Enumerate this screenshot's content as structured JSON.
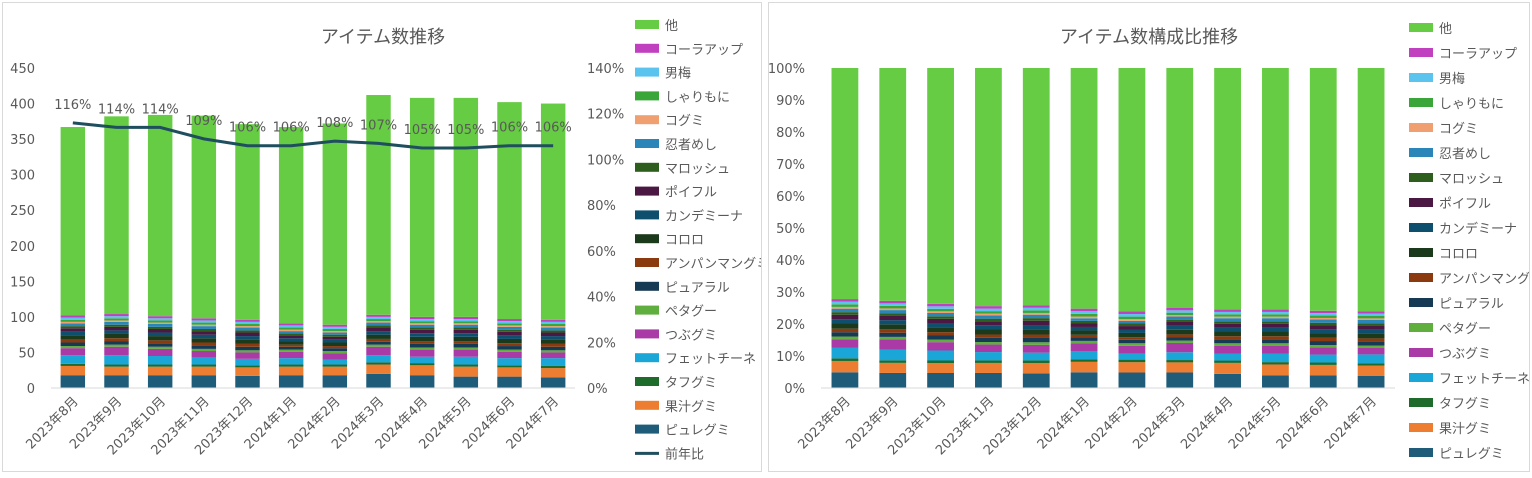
{
  "chart_data": [
    {
      "type": "bar",
      "stacked": true,
      "title": "アイテム数推移",
      "categories": [
        "2023年8月",
        "2023年9月",
        "2023年10月",
        "2023年11月",
        "2023年12月",
        "2024年1月",
        "2024年2月",
        "2024年3月",
        "2024年4月",
        "2024年5月",
        "2024年6月",
        "2024年7月"
      ],
      "ylim": [
        0,
        450
      ],
      "yticks": [
        "0",
        "50",
        "100",
        "150",
        "200",
        "250",
        "300",
        "350",
        "400",
        "450"
      ],
      "y2lim": [
        0,
        140
      ],
      "y2ticks": [
        "0%",
        "20%",
        "40%",
        "60%",
        "80%",
        "100%",
        "120%",
        "140%"
      ],
      "grid": false,
      "legend": "right",
      "series": [
        {
          "name": "ピュレグミ",
          "color": "#1f5c7a",
          "values": [
            18,
            18,
            18,
            18,
            17,
            18,
            18,
            20,
            18,
            16,
            16,
            15
          ]
        },
        {
          "name": "果汁グミ",
          "color": "#ed7d31",
          "values": [
            13,
            12,
            12,
            12,
            12,
            12,
            12,
            13,
            14,
            14,
            13,
            13
          ]
        },
        {
          "name": "タフグミ",
          "color": "#1e6b2c",
          "values": [
            3,
            3,
            3,
            3,
            3,
            3,
            3,
            3,
            3,
            3,
            3,
            3
          ]
        },
        {
          "name": "フェットチーネ",
          "color": "#1aa6d6",
          "values": [
            12,
            13,
            12,
            10,
            9,
            9,
            7,
            10,
            9,
            11,
            10,
            11
          ]
        },
        {
          "name": "つぶグミ",
          "color": "#a93aa6",
          "values": [
            10,
            12,
            10,
            9,
            9,
            9,
            9,
            12,
            10,
            10,
            9,
            8
          ]
        },
        {
          "name": "ペタグー",
          "color": "#5fae3e",
          "values": [
            3,
            3,
            3,
            3,
            3,
            3,
            3,
            3,
            3,
            3,
            3,
            3
          ]
        },
        {
          "name": "ピュアラル",
          "color": "#173a54",
          "values": [
            5,
            5,
            5,
            5,
            5,
            4,
            4,
            4,
            5,
            5,
            5,
            5
          ]
        },
        {
          "name": "アンパンマングミ",
          "color": "#8b3a0f",
          "values": [
            4,
            4,
            4,
            4,
            4,
            3,
            3,
            4,
            4,
            4,
            4,
            4
          ]
        },
        {
          "name": "コロロ",
          "color": "#1b3a1b",
          "values": [
            6,
            6,
            6,
            6,
            6,
            5,
            5,
            6,
            6,
            6,
            6,
            6
          ]
        },
        {
          "name": "カンデミーナ",
          "color": "#0f4f6e",
          "values": [
            5,
            5,
            5,
            5,
            5,
            4,
            4,
            5,
            5,
            5,
            5,
            5
          ]
        },
        {
          "name": "ポイフル",
          "color": "#4a1842",
          "values": [
            5,
            5,
            5,
            5,
            5,
            4,
            4,
            5,
            5,
            5,
            5,
            5
          ]
        },
        {
          "name": "マロッシュ",
          "color": "#2e5e1e",
          "values": [
            3,
            3,
            3,
            3,
            3,
            3,
            3,
            3,
            3,
            3,
            3,
            3
          ]
        },
        {
          "name": "忍者めし",
          "color": "#2a86b8",
          "values": [
            4,
            4,
            4,
            4,
            4,
            3,
            3,
            4,
            4,
            4,
            4,
            4
          ]
        },
        {
          "name": "コグミ",
          "color": "#f0a070",
          "values": [
            2,
            2,
            2,
            2,
            2,
            2,
            2,
            2,
            2,
            2,
            2,
            2
          ]
        },
        {
          "name": "しゃりもに",
          "color": "#3aa63a",
          "values": [
            3,
            3,
            3,
            3,
            3,
            3,
            3,
            3,
            3,
            3,
            3,
            3
          ]
        },
        {
          "name": "男梅",
          "color": "#5bc4ee",
          "values": [
            3,
            3,
            3,
            3,
            3,
            3,
            3,
            3,
            3,
            3,
            3,
            3
          ]
        },
        {
          "name": "コーラアップ",
          "color": "#c040c0",
          "values": [
            3,
            3,
            3,
            3,
            3,
            3,
            3,
            3,
            3,
            3,
            3,
            3
          ]
        },
        {
          "name": "他",
          "color": "#66cc44",
          "values": [
            265,
            278,
            283,
            285,
            275,
            276,
            283,
            309,
            308,
            308,
            305,
            304
          ]
        }
      ],
      "line": {
        "name": "前年比",
        "color": "#1f4e5e",
        "values": [
          116,
          114,
          114,
          109,
          106,
          106,
          108,
          107,
          105,
          105,
          106,
          106
        ],
        "labels": [
          "116%",
          "114%",
          "114%",
          "109%",
          "106%",
          "106%",
          "108%",
          "107%",
          "105%",
          "105%",
          "106%",
          "106%"
        ]
      }
    },
    {
      "type": "bar",
      "stacked": true,
      "percent": true,
      "title": "アイテム数構成比推移",
      "categories": [
        "2023年8月",
        "2023年9月",
        "2023年10月",
        "2023年11月",
        "2023年12月",
        "2024年1月",
        "2024年2月",
        "2024年3月",
        "2024年4月",
        "2024年5月",
        "2024年6月",
        "2024年7月"
      ],
      "ylim": [
        0,
        100
      ],
      "yticks": [
        "0%",
        "10%",
        "20%",
        "30%",
        "40%",
        "50%",
        "60%",
        "70%",
        "80%",
        "90%",
        "100%"
      ],
      "grid": false,
      "legend": "right"
    }
  ]
}
